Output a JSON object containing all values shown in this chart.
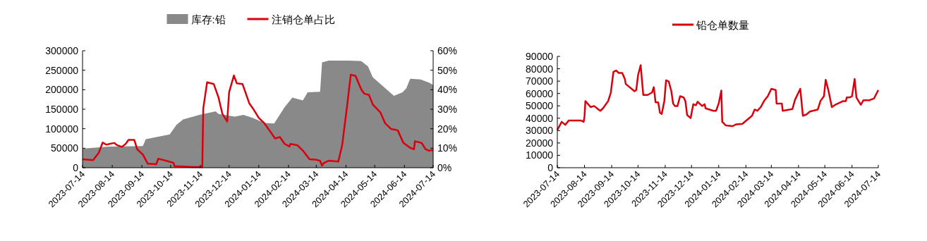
{
  "chart_data": [
    {
      "type": "area",
      "legend": "top",
      "grid": false,
      "xlim": [
        "2023-07-14",
        "2024-07-14"
      ],
      "xticks": [
        "2023-07-14",
        "2023-08-14",
        "2023-09-14",
        "2023-10-14",
        "2023-11-14",
        "2023-12-14",
        "2024-01-14",
        "2024-02-14",
        "2024-03-14",
        "2024-04-14",
        "2024-05-14",
        "2024-06-14",
        "2024-07-14"
      ],
      "ylim": [
        0,
        300000
      ],
      "yticks": [
        0,
        50000,
        100000,
        150000,
        200000,
        250000,
        300000
      ],
      "y2lim": [
        0,
        60
      ],
      "y2ticks": [
        {
          "value": 0,
          "label": "0%"
        },
        {
          "value": 10,
          "label": "10%"
        },
        {
          "value": 20,
          "label": "20%"
        },
        {
          "value": 30,
          "label": "30%"
        },
        {
          "value": 40,
          "label": "40%"
        },
        {
          "value": 50,
          "label": "50%"
        },
        {
          "value": 60,
          "label": "60%"
        }
      ],
      "series": [
        {
          "name": "库存:铅",
          "color": "#898989",
          "x": [
            "2023-07-14",
            "2023-08-10",
            "2023-09-15",
            "2023-09-18",
            "2023-10-13",
            "2023-10-20",
            "2023-10-27",
            "2023-11-13",
            "2023-11-30",
            "2023-12-03",
            "2023-12-20",
            "2023-12-29",
            "2024-01-08",
            "2024-01-20",
            "2024-01-30",
            "2024-02-10",
            "2024-02-18",
            "2024-02-29",
            "2024-03-05",
            "2024-03-17",
            "2024-03-18",
            "2024-03-20",
            "2024-03-27",
            "2024-04-16",
            "2024-04-30",
            "2024-05-07",
            "2024-05-12",
            "2024-05-20",
            "2024-06-03",
            "2024-06-12",
            "2024-06-16",
            "2024-06-20",
            "2024-07-01",
            "2024-07-10",
            "2024-07-14"
          ],
          "values": [
            48700,
            54300,
            55700,
            73100,
            85600,
            110000,
            124000,
            135700,
            144800,
            137800,
            130800,
            135700,
            127400,
            114800,
            113400,
            155200,
            179600,
            172600,
            193500,
            194900,
            194900,
            270000,
            274900,
            274900,
            273500,
            259600,
            231800,
            214400,
            184400,
            193500,
            203900,
            228300,
            226200,
            217800,
            212300
          ]
        },
        {
          "name": "注销仓单占比",
          "type": "line",
          "axis": "y2",
          "color": "#d9000d",
          "x": [
            "2023-07-14",
            "2023-07-25",
            "2023-07-31",
            "2023-08-04",
            "2023-08-08",
            "2023-08-11",
            "2023-08-16",
            "2023-08-19",
            "2023-08-24",
            "2023-08-28",
            "2023-08-31",
            "2023-09-06",
            "2023-09-09",
            "2023-09-15",
            "2023-09-20",
            "2023-09-29",
            "2023-10-01",
            "2023-10-07",
            "2023-10-17",
            "2023-10-18",
            "2023-11-05",
            "2023-11-16",
            "2023-11-17",
            "2023-11-21",
            "2023-11-28",
            "2023-12-03",
            "2023-12-07",
            "2023-12-12",
            "2023-12-14",
            "2023-12-19",
            "2023-12-22",
            "2023-12-28",
            "2023-12-31",
            "2024-01-04",
            "2024-01-08",
            "2024-01-14",
            "2024-01-20",
            "2024-01-25",
            "2024-01-31",
            "2024-02-05",
            "2024-02-10",
            "2024-02-15",
            "2024-02-16",
            "2024-02-23",
            "2024-02-29",
            "2024-03-07",
            "2024-03-13",
            "2024-03-18",
            "2024-03-20",
            "2024-03-22",
            "2024-03-27",
            "2024-04-06",
            "2024-04-10",
            "2024-04-15",
            "2024-04-19",
            "2024-04-24",
            "2024-04-30",
            "2024-05-03",
            "2024-05-08",
            "2024-05-12",
            "2024-05-20",
            "2024-05-25",
            "2024-05-31",
            "2024-06-07",
            "2024-06-13",
            "2024-06-20",
            "2024-06-24",
            "2024-06-25",
            "2024-07-02",
            "2024-07-06",
            "2024-07-09",
            "2024-07-14"
          ],
          "values": [
            4.3,
            3.9,
            7.7,
            12.9,
            11.8,
            12.2,
            12.7,
            11.6,
            10.7,
            12.2,
            14.3,
            14.3,
            9.5,
            6.7,
            2.1,
            1.8,
            4.6,
            3.9,
            2.5,
            0.8,
            0.4,
            0.4,
            30.3,
            43.8,
            42.9,
            35.9,
            27.6,
            23.7,
            38.7,
            47.3,
            43.3,
            42.9,
            38.7,
            33.1,
            30.3,
            25.5,
            22.7,
            19.2,
            15.0,
            15.7,
            12.2,
            10.9,
            12.2,
            11.6,
            8.8,
            4.3,
            4.2,
            3.5,
            1.1,
            2.5,
            3.6,
            3.2,
            11.6,
            31.0,
            47.7,
            47.1,
            40.1,
            38.0,
            37.3,
            32.4,
            28.3,
            22.7,
            19.9,
            19.2,
            12.7,
            10.2,
            9.5,
            13.6,
            12.7,
            9.5,
            8.8,
            9.0
          ]
        }
      ]
    },
    {
      "type": "line",
      "legend": "top",
      "grid": false,
      "xlim": [
        "2023-07-14",
        "2024-07-14"
      ],
      "xticks": [
        "2023-07-14",
        "2023-08-14",
        "2023-09-14",
        "2023-10-14",
        "2023-11-14",
        "2023-12-14",
        "2024-01-14",
        "2024-02-14",
        "2024-03-14",
        "2024-04-14",
        "2024-05-14",
        "2024-06-14",
        "2024-07-14"
      ],
      "ylim": [
        0,
        90000
      ],
      "yticks": [
        0,
        10000,
        20000,
        30000,
        40000,
        50000,
        60000,
        70000,
        80000,
        90000
      ],
      "series": [
        {
          "name": "铅仓单数量",
          "color": "#d9000d",
          "x": [
            "2023-07-14",
            "2023-07-19",
            "2023-07-23",
            "2023-07-27",
            "2023-08-10",
            "2023-08-13",
            "2023-08-14",
            "2023-08-15",
            "2023-08-21",
            "2023-08-25",
            "2023-08-30",
            "2023-09-01",
            "2023-09-04",
            "2023-09-10",
            "2023-09-13",
            "2023-09-16",
            "2023-09-19",
            "2023-09-22",
            "2023-09-26",
            "2023-09-29",
            "2023-09-30",
            "2023-10-10",
            "2023-10-12",
            "2023-10-14",
            "2023-10-17",
            "2023-10-20",
            "2023-10-25",
            "2023-10-30",
            "2023-11-01",
            "2023-11-03",
            "2023-11-06",
            "2023-11-08",
            "2023-11-10",
            "2023-11-13",
            "2023-11-15",
            "2023-11-18",
            "2023-11-21",
            "2023-11-23",
            "2023-11-25",
            "2023-11-28",
            "2023-12-01",
            "2023-12-05",
            "2023-12-07",
            "2023-12-09",
            "2023-12-13",
            "2023-12-16",
            "2023-12-19",
            "2023-12-21",
            "2023-12-26",
            "2023-12-29",
            "2023-12-30",
            "2024-01-08",
            "2024-01-11",
            "2024-01-14",
            "2024-01-17",
            "2024-01-18",
            "2024-01-22",
            "2024-01-30",
            "2024-02-03",
            "2024-02-10",
            "2024-02-21",
            "2024-02-24",
            "2024-02-27",
            "2024-03-02",
            "2024-03-06",
            "2024-03-10",
            "2024-03-14",
            "2024-03-19",
            "2024-03-20",
            "2024-03-26",
            "2024-03-27",
            "2024-04-07",
            "2024-04-10",
            "2024-04-16",
            "2024-04-19",
            "2024-04-23",
            "2024-04-27",
            "2024-05-06",
            "2024-05-09",
            "2024-05-13",
            "2024-05-15",
            "2024-05-18",
            "2024-05-22",
            "2024-05-26",
            "2024-06-04",
            "2024-06-07",
            "2024-06-08",
            "2024-06-11",
            "2024-06-14",
            "2024-06-17",
            "2024-06-19",
            "2024-06-24",
            "2024-06-27",
            "2024-06-30",
            "2024-07-04",
            "2024-07-05",
            "2024-07-09",
            "2024-07-14"
          ],
          "values": [
            30600,
            37100,
            34700,
            38100,
            38100,
            37100,
            41500,
            53900,
            49000,
            49900,
            47000,
            46000,
            48000,
            53900,
            60800,
            77600,
            78600,
            76600,
            76600,
            71700,
            67700,
            61800,
            62800,
            74600,
            82900,
            58800,
            58800,
            60800,
            65100,
            52900,
            52900,
            44600,
            43400,
            53900,
            70700,
            69700,
            61800,
            51900,
            49900,
            49900,
            57800,
            56800,
            53900,
            42600,
            40100,
            51300,
            50500,
            53300,
            49900,
            51300,
            48000,
            46000,
            46000,
            51900,
            62400,
            37100,
            34200,
            33600,
            35100,
            35500,
            42000,
            47000,
            46000,
            49000,
            54300,
            57800,
            63800,
            62800,
            51900,
            51900,
            46000,
            47400,
            54900,
            63800,
            42000,
            43000,
            45400,
            47000,
            53900,
            57800,
            71100,
            62800,
            49000,
            50900,
            53900,
            53900,
            56800,
            56800,
            57800,
            71700,
            56800,
            50900,
            54500,
            54500,
            54500,
            54900,
            55900,
            62800
          ]
        }
      ]
    }
  ]
}
